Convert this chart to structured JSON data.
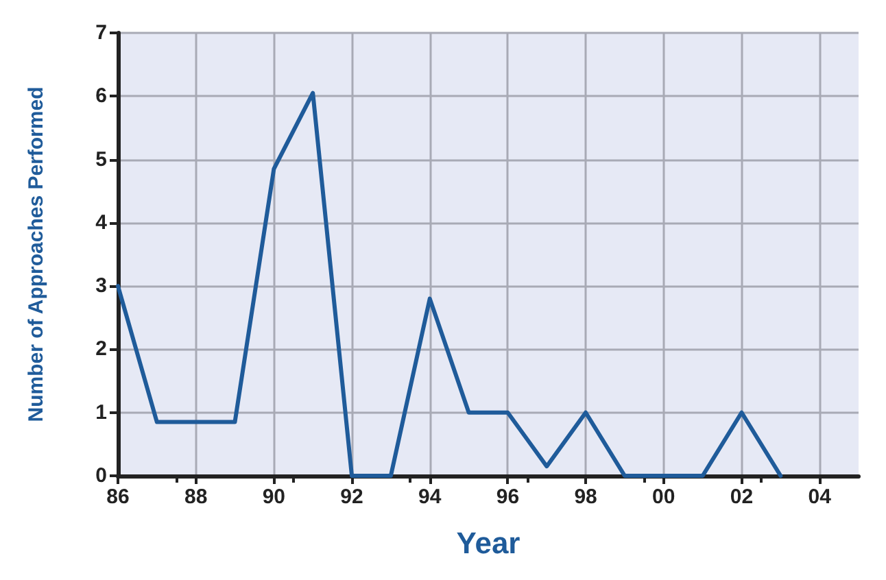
{
  "chart_data": {
    "type": "line",
    "xlabel": "Year",
    "ylabel": "Number of Approaches Performed",
    "x": [
      1986,
      1987,
      1988,
      1989,
      1990,
      1991,
      1992,
      1993,
      1994,
      1995,
      1996,
      1997,
      1998,
      1999,
      2000,
      2001,
      2002,
      2003
    ],
    "series": [
      {
        "color": "#1f5b9a",
        "values": [
          3,
          0.85,
          0.85,
          0.85,
          4.85,
          6.05,
          0,
          0,
          2.8,
          1,
          1,
          0.15,
          1,
          0,
          0,
          0,
          1,
          0
        ]
      }
    ],
    "xlim": [
      1986,
      2005
    ],
    "xticks": [
      {
        "value": 1986,
        "label": "86"
      },
      {
        "value": 1988,
        "label": "88"
      },
      {
        "value": 1990,
        "label": "90"
      },
      {
        "value": 1992,
        "label": "92"
      },
      {
        "value": 1994,
        "label": "94"
      },
      {
        "value": 1996,
        "label": "96"
      },
      {
        "value": 1998,
        "label": "98"
      },
      {
        "value": 2000,
        "label": "00"
      },
      {
        "value": 2002,
        "label": "02"
      },
      {
        "value": 2004,
        "label": "04"
      }
    ],
    "ylim": [
      0,
      7
    ],
    "yticks": [
      0,
      1,
      2,
      3,
      4,
      5,
      6,
      7
    ],
    "grid": true,
    "marker": "none",
    "line_style": "solid"
  }
}
